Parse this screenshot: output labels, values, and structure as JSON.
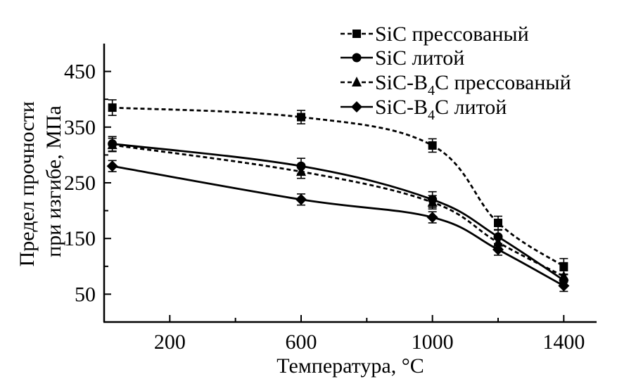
{
  "chart_data": {
    "type": "line",
    "title": "",
    "xlabel": "Температура, °C",
    "ylabel_lines": [
      "Предел прочности",
      "при изгибе, МПа"
    ],
    "xlim": [
      0,
      1500
    ],
    "ylim": [
      0,
      500
    ],
    "xticks": [
      200,
      600,
      1000,
      1400
    ],
    "xtick_labels": [
      "200",
      "600",
      "1000",
      "1400"
    ],
    "xticks_minor": [
      400,
      800,
      1200
    ],
    "yticks": [
      50,
      150,
      250,
      350,
      450
    ],
    "ytick_labels": [
      "50",
      "150",
      "250",
      "350",
      "450"
    ],
    "yticks_minor": [
      100,
      200,
      300,
      400
    ],
    "grid": false,
    "legend_position": "top-right",
    "series": [
      {
        "name": "SiC прессованый",
        "name_main": "SiC прессованый",
        "marker": "square",
        "line": "dashed",
        "x": [
          25,
          600,
          1000,
          1200,
          1400
        ],
        "y": [
          385,
          368,
          317,
          178,
          100
        ],
        "err": [
          14,
          12,
          12,
          12,
          14
        ]
      },
      {
        "name": "SiC литой",
        "name_main": "SiC литой",
        "marker": "circle",
        "line": "solid",
        "x": [
          25,
          600,
          1000,
          1200,
          1400
        ],
        "y": [
          320,
          280,
          220,
          153,
          75
        ],
        "err": [
          13,
          14,
          14,
          12,
          10
        ]
      },
      {
        "name": "SiC-B4C прессованый",
        "name_pre": "SiC-B",
        "name_sub": "4",
        "name_post": "C прессованый",
        "marker": "triangle",
        "line": "dashed",
        "x": [
          25,
          600,
          1000,
          1200,
          1400
        ],
        "y": [
          318,
          270,
          215,
          143,
          82
        ],
        "err": [
          12,
          12,
          12,
          10,
          10
        ]
      },
      {
        "name": "SiC-B4C литой",
        "name_pre": "SiC-B",
        "name_sub": "4",
        "name_post": "C литой",
        "marker": "diamond",
        "line": "solid",
        "x": [
          25,
          600,
          1000,
          1200,
          1400
        ],
        "y": [
          280,
          220,
          188,
          130,
          65
        ],
        "err": [
          10,
          10,
          10,
          10,
          10
        ]
      }
    ]
  }
}
